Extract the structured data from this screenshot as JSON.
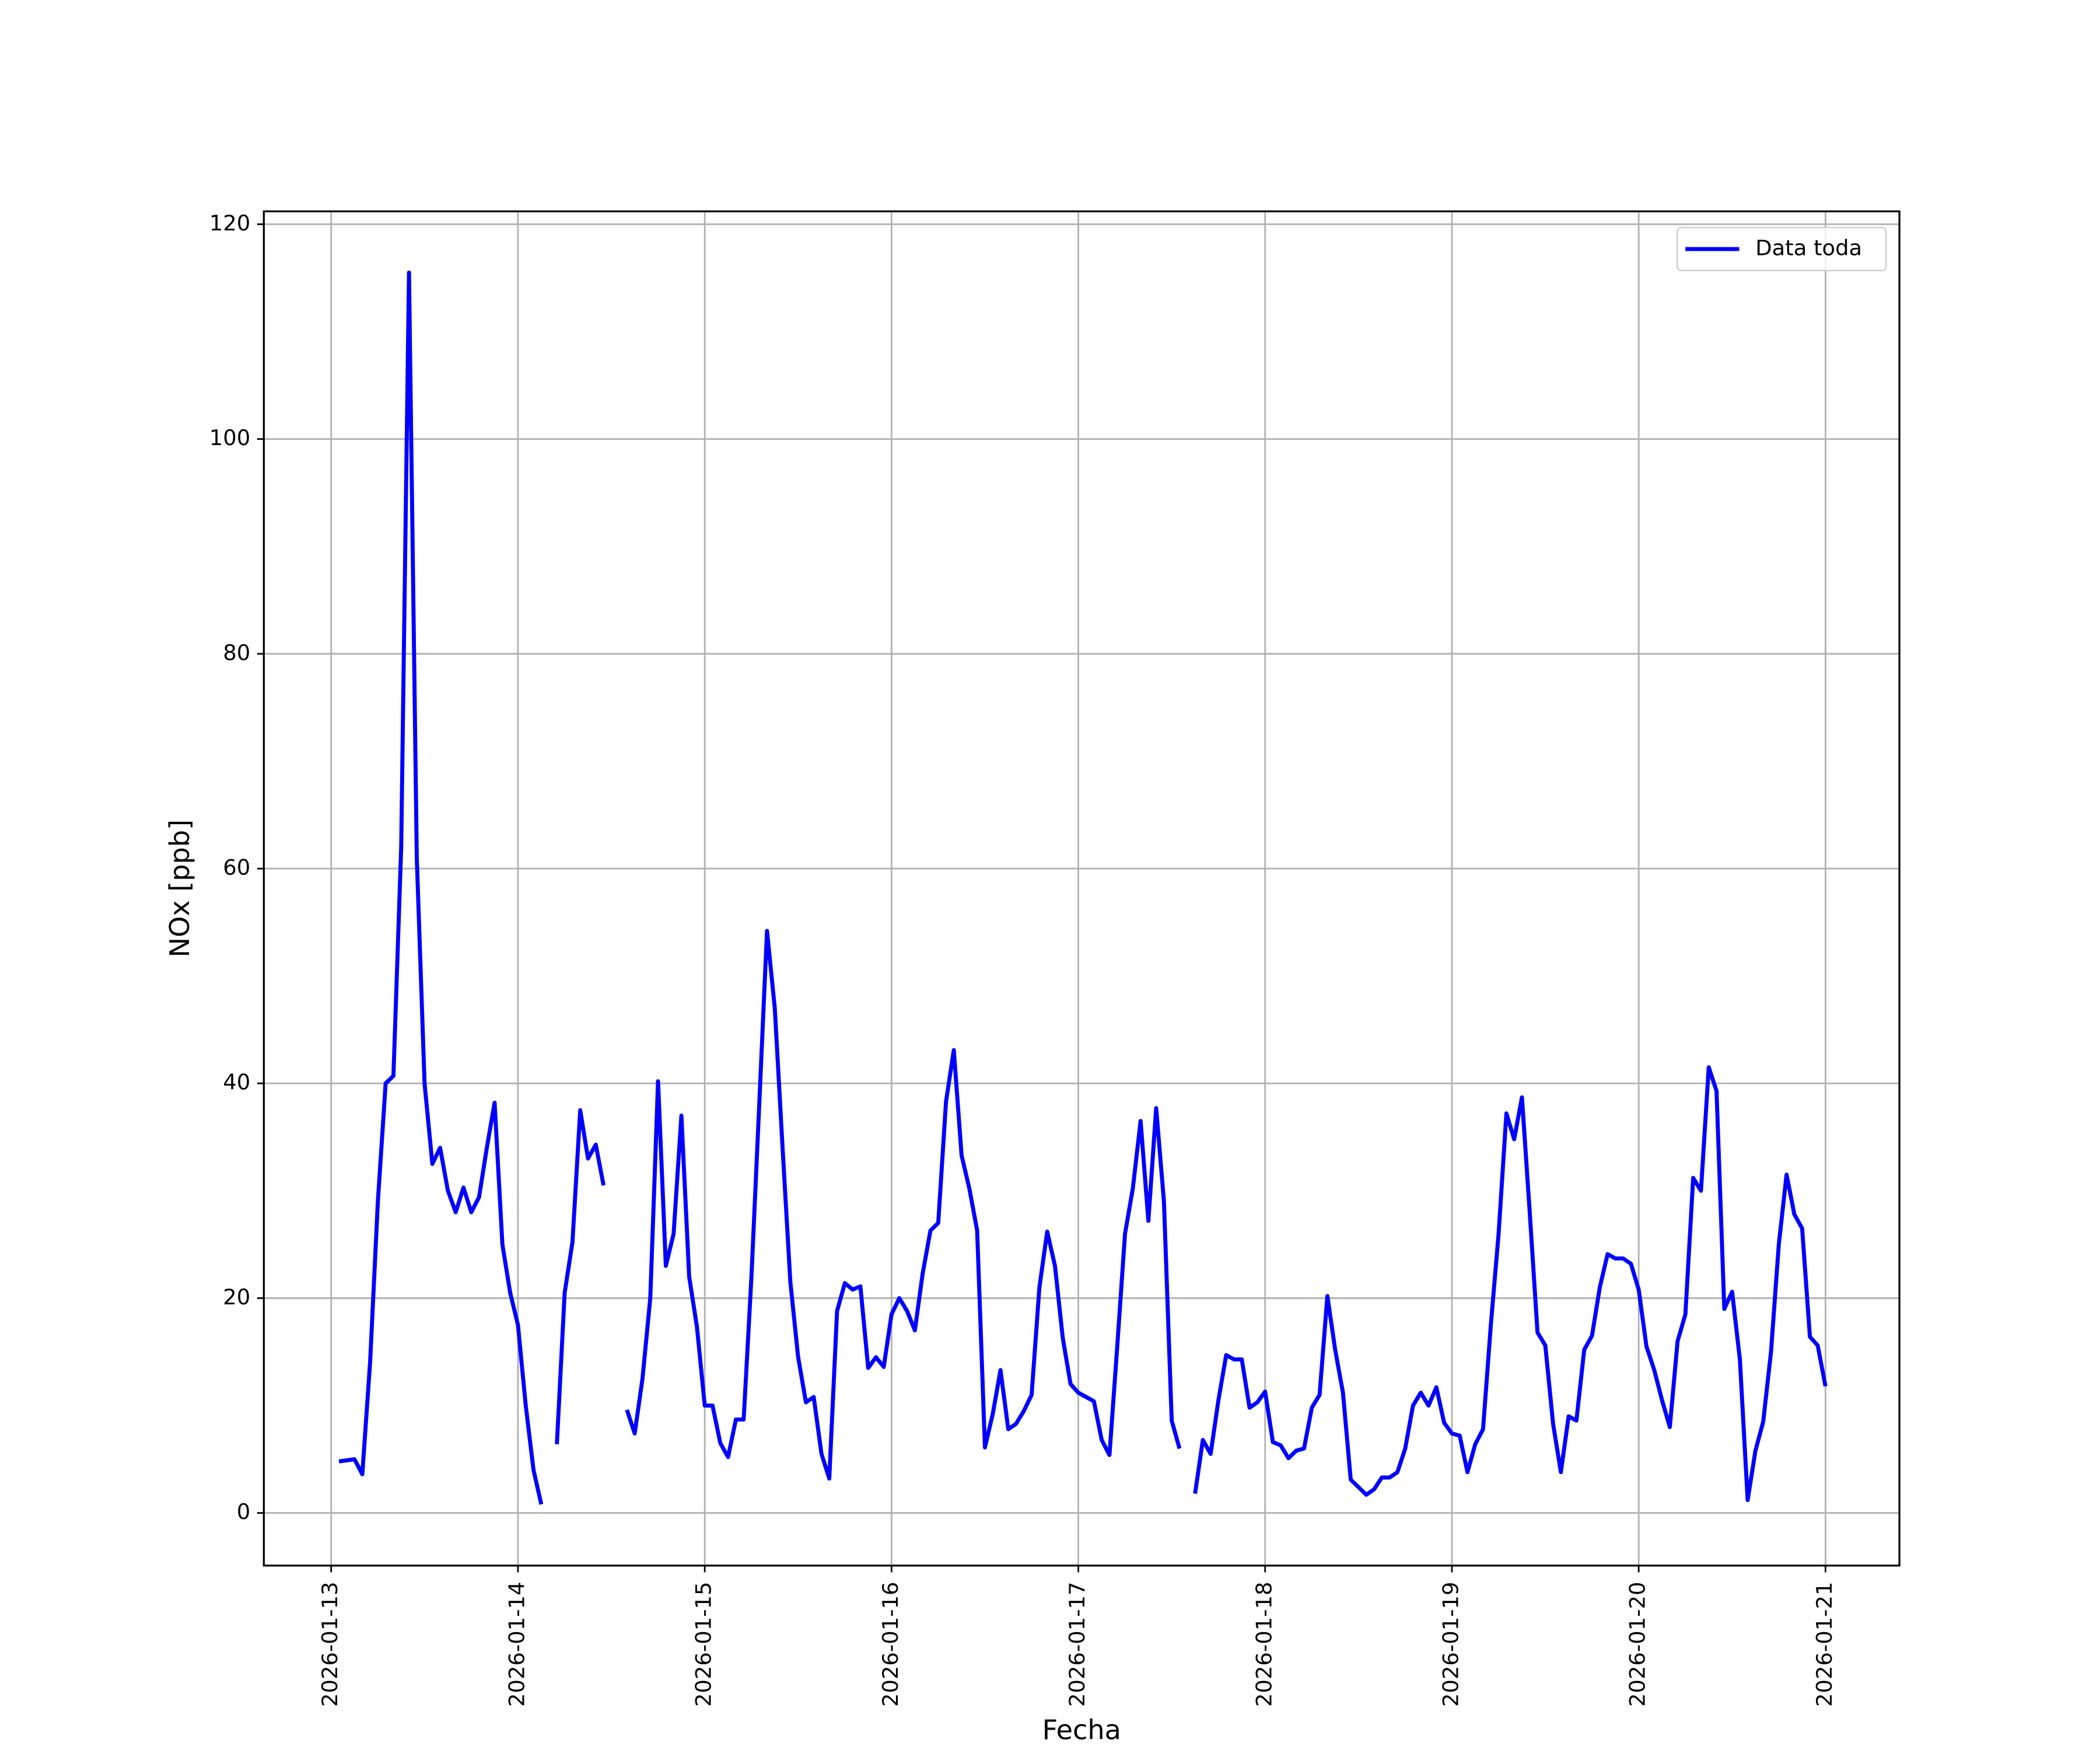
{
  "chart_data": {
    "type": "line",
    "xlabel": "Fecha",
    "ylabel": "NOx [ppb]",
    "x": [
      "2026-01-13 01:00",
      "2026-01-13 02:00",
      "2026-01-13 03:00",
      "2026-01-13 04:00",
      "2026-01-13 05:00",
      "2026-01-13 06:00",
      "2026-01-13 07:00",
      "2026-01-13 08:00",
      "2026-01-13 09:00",
      "2026-01-13 10:00",
      "2026-01-13 11:00",
      "2026-01-13 12:00",
      "2026-01-13 13:00",
      "2026-01-13 14:00",
      "2026-01-13 15:00",
      "2026-01-13 16:00",
      "2026-01-13 17:00",
      "2026-01-13 18:00",
      "2026-01-13 19:00",
      "2026-01-13 20:00",
      "2026-01-13 21:00",
      "2026-01-13 22:00",
      "2026-01-13 23:00",
      "2026-01-14 00:00",
      "2026-01-14 01:00",
      "2026-01-14 02:00",
      "2026-01-14 03:00",
      "2026-01-14 04:00",
      "2026-01-14 05:00",
      "2026-01-14 06:00",
      "2026-01-14 07:00",
      "2026-01-14 08:00",
      "2026-01-14 09:00",
      "2026-01-14 10:00",
      "2026-01-14 11:00",
      "2026-01-14 12:00",
      "2026-01-14 13:00",
      "2026-01-14 14:00",
      "2026-01-14 15:00",
      "2026-01-14 16:00",
      "2026-01-14 17:00",
      "2026-01-14 18:00",
      "2026-01-14 19:00",
      "2026-01-14 20:00",
      "2026-01-14 21:00",
      "2026-01-14 22:00",
      "2026-01-14 23:00",
      "2026-01-15 00:00",
      "2026-01-15 01:00",
      "2026-01-15 02:00",
      "2026-01-15 03:00",
      "2026-01-15 04:00",
      "2026-01-15 05:00",
      "2026-01-15 06:00",
      "2026-01-15 07:00",
      "2026-01-15 08:00",
      "2026-01-15 09:00",
      "2026-01-15 10:00",
      "2026-01-15 11:00",
      "2026-01-15 12:00",
      "2026-01-15 13:00",
      "2026-01-15 14:00",
      "2026-01-15 15:00",
      "2026-01-15 16:00",
      "2026-01-15 17:00",
      "2026-01-15 18:00",
      "2026-01-15 19:00",
      "2026-01-15 20:00",
      "2026-01-15 21:00",
      "2026-01-15 22:00",
      "2026-01-15 23:00",
      "2026-01-16 00:00",
      "2026-01-16 01:00",
      "2026-01-16 02:00",
      "2026-01-16 03:00",
      "2026-01-16 04:00",
      "2026-01-16 05:00",
      "2026-01-16 06:00",
      "2026-01-16 07:00",
      "2026-01-16 08:00",
      "2026-01-16 09:00",
      "2026-01-16 10:00",
      "2026-01-16 11:00",
      "2026-01-16 12:00",
      "2026-01-16 13:00",
      "2026-01-16 14:00",
      "2026-01-16 15:00",
      "2026-01-16 16:00",
      "2026-01-16 17:00",
      "2026-01-16 18:00",
      "2026-01-16 19:00",
      "2026-01-16 20:00",
      "2026-01-16 21:00",
      "2026-01-16 22:00",
      "2026-01-16 23:00",
      "2026-01-17 00:00",
      "2026-01-17 01:00",
      "2026-01-17 02:00",
      "2026-01-17 03:00",
      "2026-01-17 04:00",
      "2026-01-17 05:00",
      "2026-01-17 06:00",
      "2026-01-17 07:00",
      "2026-01-17 08:00",
      "2026-01-17 09:00",
      "2026-01-17 10:00",
      "2026-01-17 11:00",
      "2026-01-17 12:00",
      "2026-01-17 13:00",
      "2026-01-17 14:00",
      "2026-01-17 15:00",
      "2026-01-17 16:00",
      "2026-01-17 17:00",
      "2026-01-17 18:00",
      "2026-01-17 19:00",
      "2026-01-17 20:00",
      "2026-01-17 21:00",
      "2026-01-17 22:00",
      "2026-01-17 23:00",
      "2026-01-18 00:00",
      "2026-01-18 01:00",
      "2026-01-18 02:00",
      "2026-01-18 03:00",
      "2026-01-18 04:00",
      "2026-01-18 05:00",
      "2026-01-18 06:00",
      "2026-01-18 07:00",
      "2026-01-18 08:00",
      "2026-01-18 09:00",
      "2026-01-18 10:00",
      "2026-01-18 11:00",
      "2026-01-18 12:00",
      "2026-01-18 13:00",
      "2026-01-18 14:00",
      "2026-01-18 15:00",
      "2026-01-18 16:00",
      "2026-01-18 17:00",
      "2026-01-18 18:00",
      "2026-01-18 19:00",
      "2026-01-18 20:00",
      "2026-01-18 21:00",
      "2026-01-18 22:00",
      "2026-01-18 23:00",
      "2026-01-19 00:00",
      "2026-01-19 01:00",
      "2026-01-19 02:00",
      "2026-01-19 03:00",
      "2026-01-19 04:00",
      "2026-01-19 05:00",
      "2026-01-19 06:00",
      "2026-01-19 07:00",
      "2026-01-19 08:00",
      "2026-01-19 09:00",
      "2026-01-19 10:00",
      "2026-01-19 11:00",
      "2026-01-19 12:00",
      "2026-01-19 13:00",
      "2026-01-19 14:00",
      "2026-01-19 15:00",
      "2026-01-19 16:00",
      "2026-01-19 17:00",
      "2026-01-19 18:00",
      "2026-01-19 19:00",
      "2026-01-19 20:00",
      "2026-01-19 21:00",
      "2026-01-19 22:00",
      "2026-01-19 23:00",
      "2026-01-20 00:00",
      "2026-01-20 01:00",
      "2026-01-20 02:00",
      "2026-01-20 03:00",
      "2026-01-20 04:00",
      "2026-01-20 05:00",
      "2026-01-20 06:00",
      "2026-01-20 07:00",
      "2026-01-20 08:00",
      "2026-01-20 09:00",
      "2026-01-20 10:00",
      "2026-01-20 11:00",
      "2026-01-20 12:00",
      "2026-01-20 13:00",
      "2026-01-20 14:00",
      "2026-01-20 15:00",
      "2026-01-20 16:00",
      "2026-01-20 17:00",
      "2026-01-20 18:00",
      "2026-01-20 19:00",
      "2026-01-20 20:00",
      "2026-01-20 21:00",
      "2026-01-20 22:00",
      "2026-01-20 23:00",
      "2026-01-21 00:00"
    ],
    "series": [
      {
        "name": "Data toda",
        "color": "#0000ff",
        "values": [
          4.8,
          4.9,
          5,
          3.6,
          14,
          29,
          40,
          40.7,
          62,
          115.5,
          61,
          40,
          32.5,
          34,
          30,
          28,
          30.3,
          28,
          29.4,
          34,
          38.2,
          25,
          20.5,
          17.5,
          10,
          4,
          0.8,
          null,
          6.4,
          20.5,
          25.2,
          37.5,
          33,
          34.3,
          30.5,
          null,
          null,
          9.6,
          7.4,
          12.5,
          20,
          40.2,
          23,
          26,
          37,
          22,
          17.3,
          10,
          10,
          6.5,
          5.2,
          8.7,
          8.7,
          22,
          38,
          54.2,
          47,
          34,
          21.5,
          14.5,
          10.3,
          10.8,
          5.5,
          3.2,
          18.8,
          21.4,
          20.8,
          21.1,
          13.5,
          14.5,
          13.6,
          18.5,
          20,
          18.8,
          17,
          22.3,
          26.3,
          27,
          38.3,
          43.1,
          33.3,
          30.2,
          26.3,
          6.1,
          9.2,
          13.3,
          7.8,
          8.3,
          9.5,
          11,
          21,
          26.2,
          23,
          16.3,
          12,
          11.2,
          10.8,
          10.4,
          6.8,
          5.4,
          15.5,
          26,
          30.2,
          36.5,
          27.2,
          37.7,
          29,
          8.6,
          6,
          null,
          1.8,
          6.8,
          5.5,
          10.5,
          14.7,
          14.3,
          14.3,
          9.8,
          10.3,
          11.3,
          6.6,
          6.3,
          5.1,
          5.8,
          6,
          9.8,
          11,
          20.2,
          15.2,
          11.2,
          3.1,
          2.4,
          1.7,
          2.2,
          3.3,
          3.3,
          3.8,
          6,
          10,
          11.2,
          10,
          11.7,
          8.4,
          7.4,
          7.2,
          3.8,
          6.4,
          7.8,
          17.5,
          26,
          37.2,
          34.8,
          38.7,
          28,
          16.8,
          15.6,
          8.3,
          3.8,
          9,
          8.6,
          15.2,
          16.5,
          21,
          24.1,
          23.7,
          23.7,
          23.2,
          20.8,
          15.5,
          13.3,
          10.5,
          8,
          16,
          18.5,
          31.2,
          30,
          41.5,
          39.3,
          19,
          20.6,
          14.3,
          1.2,
          5.8,
          8.5,
          15,
          25,
          31.5,
          27.8,
          26.5,
          16.4,
          15.6,
          11.8
        ]
      }
    ],
    "xlim": [
      "2026-01-12 15:21",
      "2026-01-21 09:30"
    ],
    "xticks": [
      "2026-01-13",
      "2026-01-14",
      "2026-01-15",
      "2026-01-16",
      "2026-01-17",
      "2026-01-18",
      "2026-01-19",
      "2026-01-20",
      "2026-01-21"
    ],
    "ylim": [
      -4.9,
      121.2
    ],
    "yticks": [
      0,
      20,
      40,
      60,
      80,
      100,
      120
    ],
    "grid": true,
    "legend": "upper right"
  }
}
